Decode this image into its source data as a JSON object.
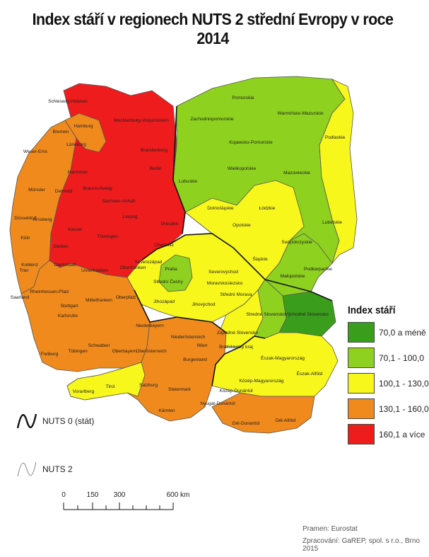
{
  "title": "Index stáří v regionech NUTS 2 střední Evropy v roce 2014",
  "colors": {
    "c70": "#3a9e1c",
    "c100": "#8ed11e",
    "c130": "#f7f71c",
    "c160": "#f08a1c",
    "c161": "#ee1c1c"
  },
  "legend": {
    "title": "Index stáří",
    "items": [
      {
        "label": "70,0 a méně",
        "color": "#3a9e1c"
      },
      {
        "label": "70,1 - 100,0",
        "color": "#8ed11e"
      },
      {
        "label": "100,1 - 130,0",
        "color": "#f7f71c"
      },
      {
        "label": "130,1 - 160,0",
        "color": "#f08a1c"
      },
      {
        "label": "160,1 a více",
        "color": "#ee1c1c"
      }
    ]
  },
  "boundaries": {
    "nuts0": "NUTS 0 (stát)",
    "nuts2": "NUTS 2"
  },
  "scale": {
    "ticks": [
      "0",
      "150",
      "300",
      "600 km"
    ]
  },
  "source": "Pramen: Eurostat",
  "author": "Zpracování: GaREP, spol. s r.o., Brno 2015",
  "regions": {
    "de": [
      "Schleswig-Holstein",
      "Hamburg",
      "Bremen",
      "Mecklenburg-Vorpommern",
      "Weser-Ems",
      "Lüneburg",
      "Brandenburg",
      "Berlin",
      "Hannover",
      "Münster",
      "Detmold",
      "Braunschweig",
      "Sachsen-Anhalt",
      "Düsseldorf",
      "Arnsberg",
      "Leipzig",
      "Dresden",
      "Kassel",
      "Köln",
      "Gießen",
      "Thüringen",
      "Chemnitz",
      "Koblenz",
      "Darmstadt",
      "Unterfranken",
      "Oberfranken",
      "Trier",
      "Rheinhessen-Pfalz",
      "Saarland",
      "Mittelfranken",
      "Oberpfalz",
      "Karlsruhe",
      "Stuttgart",
      "Niederbayern",
      "Schwaben",
      "Freiburg",
      "Tübingen",
      "Oberbayern"
    ],
    "pl": [
      "Pomorskie",
      "Warmińsko-Mazurskie",
      "Zachodniopomorskie",
      "Podlaskie",
      "Kujawsko-Pomorskie",
      "Lubuskie",
      "Wielkopolskie",
      "Mazowieckie",
      "Łódzkie",
      "Dolnośląskie",
      "Opolskie",
      "Lubelskie",
      "Swiętokrzyskie",
      "Śląskie",
      "Małopolskie",
      "Podkarpackie"
    ],
    "cz": [
      "Severozápad",
      "Praha",
      "Severovýchod",
      "Střední Čechy",
      "Moravskoslezsko",
      "Jihozápad",
      "Jihovýchod",
      "Střední Morava"
    ],
    "sk": [
      "Stredné Slovensko",
      "Východné Slovensko",
      "Západné Slovensko",
      "Bratislavský kraj"
    ],
    "at": [
      "Niederösterreich",
      "Oberösterreich",
      "Wien",
      "Burgenland",
      "Vorarlberg",
      "Tirol",
      "Salzburg",
      "Steiermark",
      "Kärnten"
    ],
    "hu": [
      "Észak-Magyarország",
      "Közép-Magyarország",
      "Észak-Alföld",
      "Közép-Dunántúl",
      "Nyugat-Dunántúl",
      "Dél-Dunántúl",
      "Dél-Alföld"
    ]
  }
}
